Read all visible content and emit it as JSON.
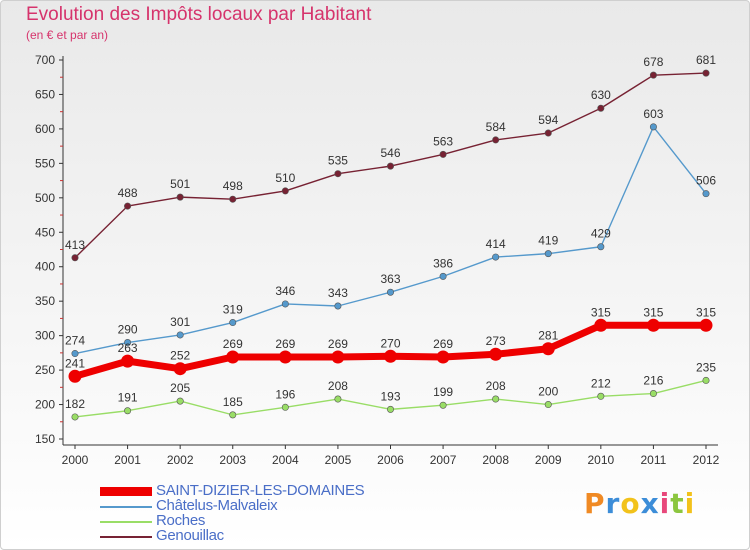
{
  "header": {
    "title": "Evolution des Impôts locaux par Habitant",
    "subtitle": "(en € et par an)"
  },
  "logo": {
    "letters": [
      "P",
      "r",
      "o",
      "x",
      "i",
      "t",
      "i"
    ],
    "colors": [
      "#f08a24",
      "#3c8dd8",
      "#f2c21b",
      "#3c8dd8",
      "#e8487b",
      "#8cc63f",
      "#f2c21b"
    ]
  },
  "chart_data": {
    "type": "line",
    "x": [
      "2000",
      "2001",
      "2002",
      "2003",
      "2004",
      "2005",
      "2006",
      "2007",
      "2008",
      "2009",
      "2010",
      "2011",
      "2012"
    ],
    "ylim": [
      150,
      700
    ],
    "yticks": [
      "150",
      "200",
      "250",
      "300",
      "350",
      "400",
      "450",
      "500",
      "550",
      "600",
      "650",
      "700"
    ],
    "grid": false,
    "legend_position": "bottom-left",
    "series": [
      {
        "name": "SAINT-DIZIER-LES-DOMAINES",
        "values": [
          241,
          263,
          252,
          269,
          269,
          269,
          270,
          269,
          273,
          281,
          315,
          315,
          315
        ],
        "color": "#ee0000",
        "style": "thick"
      },
      {
        "name": "Châtelus-Malvaleix",
        "values": [
          274,
          290,
          301,
          319,
          346,
          343,
          363,
          386,
          414,
          419,
          429,
          603,
          506
        ],
        "color": "#5599cc",
        "style": "thin"
      },
      {
        "name": "Roches",
        "values": [
          182,
          191,
          205,
          185,
          196,
          208,
          193,
          199,
          208,
          200,
          212,
          216,
          235
        ],
        "color": "#99dd66",
        "style": "thin"
      },
      {
        "name": "Genouillac",
        "values": [
          413,
          488,
          501,
          498,
          510,
          535,
          546,
          563,
          584,
          594,
          630,
          678,
          681
        ],
        "color": "#772233",
        "style": "thin"
      }
    ]
  }
}
